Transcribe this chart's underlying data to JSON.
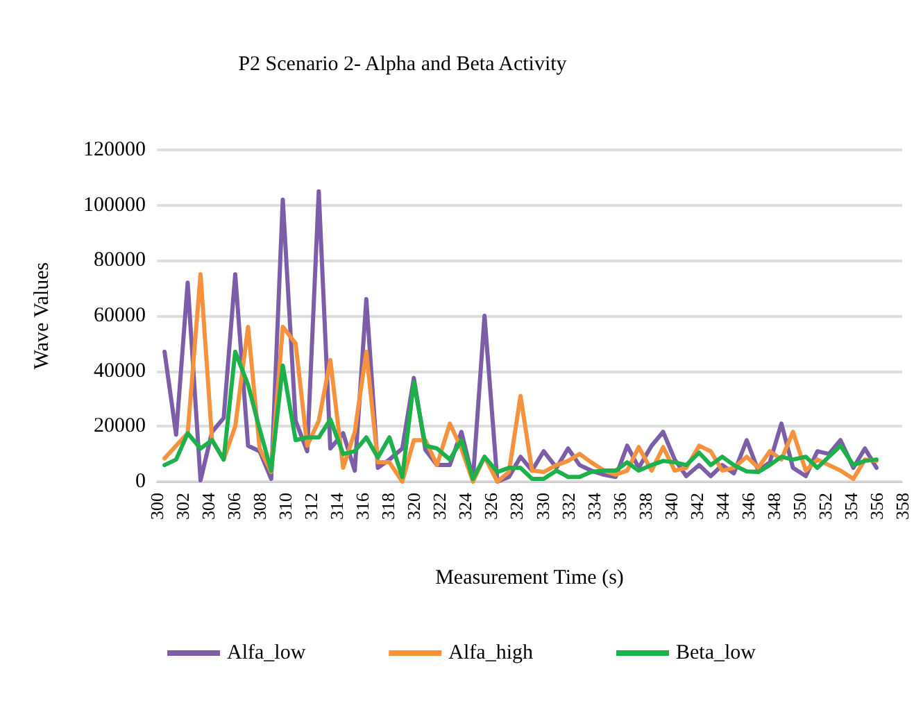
{
  "chart_data": {
    "type": "line",
    "title": "P2 Scenario 2- Alpha and Beta Activity",
    "xlabel": "Measurement Time (s)",
    "ylabel": "Wave Values",
    "x": [
      300.6,
      301.5,
      302.4,
      303.4,
      304.3,
      305.2,
      306.1,
      307.1,
      308.0,
      308.9,
      309.8,
      310.8,
      311.7,
      312.6,
      313.5,
      314.5,
      315.4,
      316.3,
      317.2,
      318.1,
      319.1,
      320.0,
      320.9,
      321.8,
      322.8,
      323.7,
      324.6,
      325.5,
      326.5,
      327.4,
      328.3,
      329.2,
      330.1,
      331.1,
      332.0,
      332.9,
      333.8,
      334.8,
      335.7,
      336.6,
      337.5,
      338.5,
      339.4,
      340.3,
      341.2,
      342.2,
      343.1,
      344.0,
      344.9,
      345.9,
      346.8,
      347.7,
      348.6,
      349.5,
      350.5,
      351.4,
      352.3,
      353.2,
      354.2,
      355.1,
      356.0
    ],
    "series": [
      {
        "name": "Alfa_low",
        "color": "#7b5ea7",
        "values": [
          47000,
          17000,
          72000,
          500,
          18000,
          23000,
          75000,
          13000,
          11000,
          1000,
          102000,
          22000,
          11000,
          105000,
          12000,
          17500,
          4000,
          66000,
          5000,
          8000,
          12000,
          37500,
          11500,
          6000,
          6000,
          18000,
          1000,
          60000,
          0,
          1700,
          9000,
          4000,
          11000,
          5000,
          12000,
          6000,
          4000,
          2500,
          1700,
          13000,
          5000,
          13000,
          18000,
          8000,
          2000,
          6000,
          2000,
          6000,
          3000,
          15000,
          4000,
          7000,
          21000,
          5000,
          2000,
          11000,
          10000,
          15000,
          5000,
          12000,
          5000
        ]
      },
      {
        "name": "Alfa_high",
        "color": "#f5923e",
        "values": [
          8400,
          13000,
          17500,
          75000,
          15000,
          8000,
          20000,
          56000,
          12000,
          3500,
          56000,
          50000,
          13000,
          22000,
          44000,
          5000,
          18000,
          47000,
          7000,
          7000,
          0,
          15000,
          15000,
          6000,
          21000,
          12000,
          0,
          9000,
          0,
          3500,
          31000,
          4000,
          3500,
          6000,
          7500,
          10000,
          7000,
          4000,
          2500,
          4000,
          12500,
          4000,
          12500,
          4000,
          5000,
          13000,
          11000,
          4000,
          5000,
          9000,
          5000,
          11000,
          8000,
          18000,
          4000,
          8000,
          6000,
          4000,
          1000,
          8000,
          7500
        ]
      },
      {
        "name": "Beta_low",
        "color": "#1db04b",
        "values": [
          6000,
          8000,
          17500,
          12000,
          15000,
          8000,
          47000,
          35000,
          19000,
          4000,
          42000,
          15000,
          16000,
          16000,
          22500,
          10000,
          11000,
          16000,
          8700,
          16000,
          1700,
          36000,
          13000,
          12000,
          8000,
          15000,
          1000,
          9000,
          3500,
          5000,
          5000,
          1000,
          1000,
          4000,
          1700,
          1700,
          3500,
          4000,
          4000,
          7000,
          4000,
          6000,
          7500,
          7000,
          6000,
          10500,
          6000,
          9000,
          6000,
          3700,
          3500,
          6000,
          9000,
          8000,
          9000,
          5000,
          9000,
          13000,
          6000,
          7500,
          8000
        ]
      }
    ],
    "xlim": [
      300,
      358
    ],
    "xticks": [
      300,
      302,
      304,
      306,
      308,
      310,
      312,
      314,
      316,
      318,
      320,
      322,
      324,
      326,
      328,
      330,
      332,
      334,
      336,
      338,
      340,
      342,
      344,
      346,
      348,
      350,
      352,
      354,
      356,
      358
    ],
    "ylim": [
      0,
      120000
    ],
    "yticks": [
      0,
      20000,
      40000,
      60000,
      80000,
      100000,
      120000
    ],
    "grid": "y",
    "legend": "bottom",
    "marker": "none",
    "line_style": "solid"
  }
}
